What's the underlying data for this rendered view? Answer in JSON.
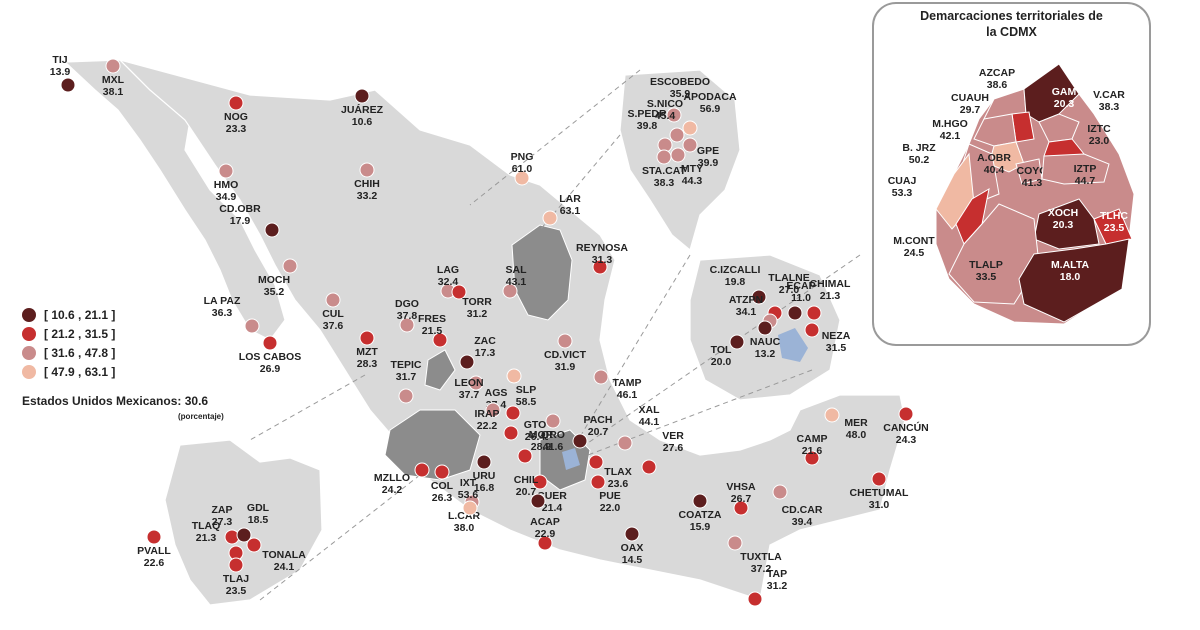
{
  "legend": {
    "ranges": [
      {
        "label": "[ 10.6 , 21.1 ]",
        "color": "#5c1e1e"
      },
      {
        "label": "[ 21.2 , 31.5 ]",
        "color": "#c62f2f"
      },
      {
        "label": "[ 31.6 , 47.8 ]",
        "color": "#c98b8b"
      },
      {
        "label": "[ 47.9 , 63.1 ]",
        "color": "#f0b9a3"
      }
    ]
  },
  "national": {
    "label": "Estados Unidos Mexicanos:",
    "value": "30.6",
    "note": "(porcentaje)"
  },
  "cdmx": {
    "title_line1": "Demarcaciones territoriales de",
    "title_line2": "la CDMX",
    "zones": [
      {
        "name": "AZCAP",
        "value": "38.6",
        "color": "#c98b8b"
      },
      {
        "name": "GAM",
        "value": "20.3",
        "color": "#5c1e1e"
      },
      {
        "name": "CUAUH",
        "value": "29.7",
        "color": "#c62f2f"
      },
      {
        "name": "V.CAR",
        "value": "38.3",
        "color": "#c98b8b"
      },
      {
        "name": "M.HGO",
        "value": "42.1",
        "color": "#c98b8b"
      },
      {
        "name": "IZTC",
        "value": "23.0",
        "color": "#c62f2f"
      },
      {
        "name": "B. JRZ",
        "value": "50.2",
        "color": "#f0b9a3"
      },
      {
        "name": "A.OBR",
        "value": "40.4",
        "color": "#c98b8b"
      },
      {
        "name": "COYO",
        "value": "41.3",
        "color": "#c98b8b"
      },
      {
        "name": "IZTP",
        "value": "44.7",
        "color": "#c98b8b"
      },
      {
        "name": "CUAJ",
        "value": "53.3",
        "color": "#f0b9a3"
      },
      {
        "name": "TLHC",
        "value": "23.5",
        "color": "#c62f2f"
      },
      {
        "name": "XOCH",
        "value": "20.3",
        "color": "#5c1e1e"
      },
      {
        "name": "M.CONT",
        "value": "24.5",
        "color": "#c62f2f"
      },
      {
        "name": "TLALP",
        "value": "33.5",
        "color": "#c98b8b"
      },
      {
        "name": "M.ALTA",
        "value": "18.0",
        "color": "#5c1e1e"
      }
    ]
  },
  "cities": [
    {
      "name": "TIJ",
      "value": "13.9",
      "color": "#5c1e1e"
    },
    {
      "name": "MXL",
      "value": "38.1",
      "color": "#c98b8b"
    },
    {
      "name": "NOG",
      "value": "23.3",
      "color": "#c62f2f"
    },
    {
      "name": "JUÁREZ",
      "value": "10.6",
      "color": "#5c1e1e"
    },
    {
      "name": "HMO",
      "value": "34.9",
      "color": "#c98b8b"
    },
    {
      "name": "CHIH",
      "value": "33.2",
      "color": "#c98b8b"
    },
    {
      "name": "CD.OBR",
      "value": "17.9",
      "color": "#5c1e1e"
    },
    {
      "name": "MOCH",
      "value": "35.2",
      "color": "#c98b8b"
    },
    {
      "name": "LA PAZ",
      "value": "36.3",
      "color": "#c98b8b"
    },
    {
      "name": "LOS CABOS",
      "value": "26.9",
      "color": "#c62f2f"
    },
    {
      "name": "CUL",
      "value": "37.6",
      "color": "#c98b8b"
    },
    {
      "name": "MZT",
      "value": "28.3",
      "color": "#c62f2f"
    },
    {
      "name": "DGO",
      "value": "37.8",
      "color": "#c98b8b"
    },
    {
      "name": "LAG",
      "value": "32.4",
      "color": "#c98b8b"
    },
    {
      "name": "TORR",
      "value": "31.2",
      "color": "#c62f2f"
    },
    {
      "name": "SAL",
      "value": "43.1",
      "color": "#c98b8b"
    },
    {
      "name": "PNG",
      "value": "61.0",
      "color": "#f0b9a3"
    },
    {
      "name": "LAR",
      "value": "63.1",
      "color": "#f0b9a3"
    },
    {
      "name": "REYNOSA",
      "value": "31.3",
      "color": "#c62f2f"
    },
    {
      "name": "ESCOBEDO",
      "value": "35.9",
      "color": "#c98b8b"
    },
    {
      "name": "S.NICO",
      "value": "45.4",
      "color": "#c98b8b"
    },
    {
      "name": "APODACA",
      "value": "56.9",
      "color": "#f0b9a3"
    },
    {
      "name": "S.PEDR",
      "value": "39.8",
      "color": "#c98b8b"
    },
    {
      "name": "GPE",
      "value": "39.9",
      "color": "#c98b8b"
    },
    {
      "name": "STA.CAT",
      "value": "38.3",
      "color": "#c98b8b"
    },
    {
      "name": "MTY",
      "value": "44.3",
      "color": "#c98b8b"
    },
    {
      "name": "FRES",
      "value": "21.5",
      "color": "#c62f2f"
    },
    {
      "name": "ZAC",
      "value": "17.3",
      "color": "#5c1e1e"
    },
    {
      "name": "TEPIC",
      "value": "31.7",
      "color": "#c98b8b"
    },
    {
      "name": "AGS",
      "value": "37.4",
      "color": "#c98b8b"
    },
    {
      "name": "SLP",
      "value": "58.5",
      "color": "#f0b9a3"
    },
    {
      "name": "CD.VICT",
      "value": "31.9",
      "color": "#c98b8b"
    },
    {
      "name": "TAMP",
      "value": "46.1",
      "color": "#c98b8b"
    },
    {
      "name": "LEON",
      "value": "37.7",
      "color": "#c98b8b"
    },
    {
      "name": "GTO",
      "value": "26.4",
      "color": "#c62f2f"
    },
    {
      "name": "IRAP",
      "value": "22.2",
      "color": "#c62f2f"
    },
    {
      "name": "QRO",
      "value": "41.6",
      "color": "#c98b8b"
    },
    {
      "name": "PACH",
      "value": "20.7",
      "color": "#5c1e1e"
    },
    {
      "name": "XAL",
      "value": "44.1",
      "color": "#c98b8b"
    },
    {
      "name": "MOR",
      "value": "28.9",
      "color": "#c62f2f"
    },
    {
      "name": "MZLLO",
      "value": "24.2",
      "color": "#c62f2f"
    },
    {
      "name": "COL",
      "value": "26.3",
      "color": "#c62f2f"
    },
    {
      "name": "URU",
      "value": "16.8",
      "color": "#5c1e1e"
    },
    {
      "name": "TLAX",
      "value": "23.6",
      "color": "#c62f2f"
    },
    {
      "name": "VER",
      "value": "27.6",
      "color": "#c62f2f"
    },
    {
      "name": "CUER",
      "value": "21.4",
      "color": "#c62f2f"
    },
    {
      "name": "PUE",
      "value": "22.0",
      "color": "#c62f2f"
    },
    {
      "name": "L.CAR",
      "value": "38.0",
      "color": "#c98b8b"
    },
    {
      "name": "IXT",
      "value": "53.6",
      "color": "#f0b9a3"
    },
    {
      "name": "CHIL",
      "value": "20.7",
      "color": "#5c1e1e"
    },
    {
      "name": "ACAP",
      "value": "22.9",
      "color": "#c62f2f"
    },
    {
      "name": "OAX",
      "value": "14.5",
      "color": "#5c1e1e"
    },
    {
      "name": "COATZA",
      "value": "15.9",
      "color": "#5c1e1e"
    },
    {
      "name": "VHSA",
      "value": "26.7",
      "color": "#c62f2f"
    },
    {
      "name": "CD.CAR",
      "value": "39.4",
      "color": "#c98b8b"
    },
    {
      "name": "TUXTLA",
      "value": "37.2",
      "color": "#c98b8b"
    },
    {
      "name": "TAP",
      "value": "31.2",
      "color": "#c62f2f"
    },
    {
      "name": "CAMP",
      "value": "21.6",
      "color": "#c62f2f"
    },
    {
      "name": "MER",
      "value": "48.0",
      "color": "#f0b9a3"
    },
    {
      "name": "CANCÚN",
      "value": "24.3",
      "color": "#c62f2f"
    },
    {
      "name": "CHETUMAL",
      "value": "31.0",
      "color": "#c62f2f"
    },
    {
      "name": "TLALNE",
      "value": "27.0",
      "color": "#c62f2f"
    },
    {
      "name": "C.IZCALLI",
      "value": "19.8",
      "color": "#5c1e1e"
    },
    {
      "name": "ECAP",
      "value": "11.0",
      "color": "#5c1e1e"
    },
    {
      "name": "CHIMAL",
      "value": "21.3",
      "color": "#c62f2f"
    },
    {
      "name": "ATZPN",
      "value": "34.1",
      "color": "#c98b8b"
    },
    {
      "name": "NEZA",
      "value": "31.5",
      "color": "#c62f2f"
    },
    {
      "name": "TOL",
      "value": "20.0",
      "color": "#5c1e1e"
    },
    {
      "name": "NAUC",
      "value": "13.2",
      "color": "#5c1e1e"
    },
    {
      "name": "ZAP",
      "value": "27.3",
      "color": "#c62f2f"
    },
    {
      "name": "GDL",
      "value": "18.5",
      "color": "#5c1e1e"
    },
    {
      "name": "TONALA",
      "value": "24.1",
      "color": "#c62f2f"
    },
    {
      "name": "PVALL",
      "value": "22.6",
      "color": "#c62f2f"
    },
    {
      "name": "TLAQ",
      "value": "21.3",
      "color": "#c62f2f"
    },
    {
      "name": "TLAJ",
      "value": "23.5",
      "color": "#c62f2f"
    }
  ]
}
